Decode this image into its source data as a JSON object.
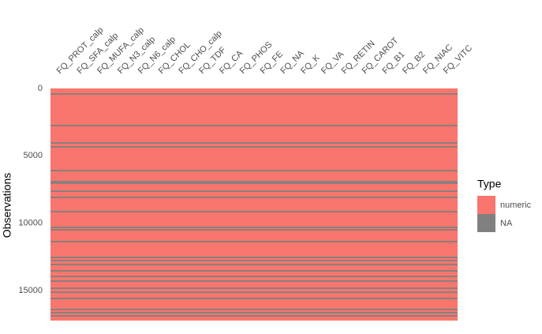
{
  "chart_data": {
    "type": "missingness",
    "categories": [
      "FQ_PROT_calp",
      "FQ_SFA_calp",
      "FQ_MUFA_calp",
      "FQ_N3_calp",
      "FQ_N6_calp",
      "FQ_CHOL",
      "FQ_CHO_calp",
      "FQ_TDF",
      "FQ_CA",
      "FQ_PHOS",
      "FQ_FE",
      "FQ_NA",
      "FQ_K",
      "FQ_VA",
      "FQ_RETIN",
      "FQ_CAROT",
      "FQ_B1",
      "FQ_B2",
      "FQ_NIAC",
      "FQ_VITC"
    ],
    "ylabel": "Observations",
    "ylim": [
      0,
      17230
    ],
    "yticks": [
      0,
      5000,
      10000,
      15000
    ],
    "legend_title": "Type",
    "series": [
      {
        "name": "numeric",
        "color": "#f8766d"
      },
      {
        "name": "NA",
        "color": "#808080"
      }
    ],
    "na_rows": [
      410,
      2755,
      4045,
      4340,
      6100,
      6915,
      7035,
      7620,
      8090,
      9145,
      10315,
      10490,
      11370,
      12545,
      12780,
      13070,
      13540,
      13950,
      14300,
      14830,
      15125,
      15590,
      16410,
      16650,
      16880
    ]
  }
}
